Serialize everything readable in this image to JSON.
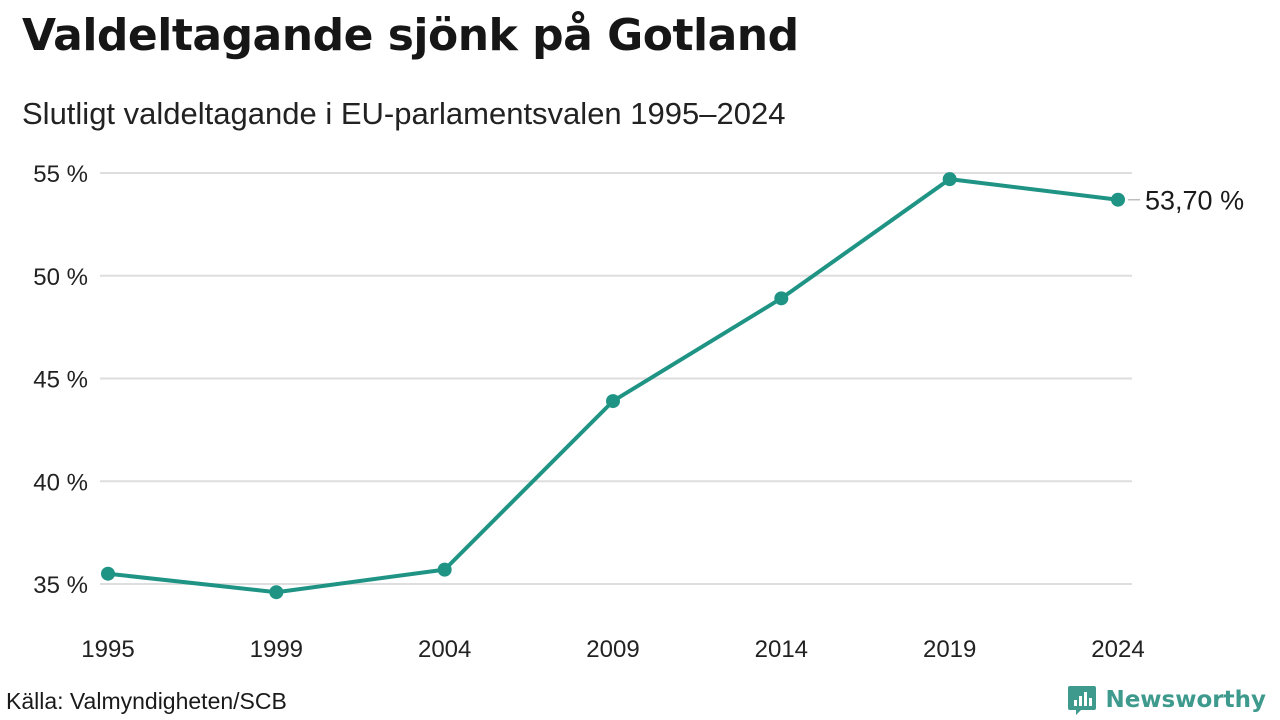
{
  "title": "Valdeltagande sjönk på Gotland",
  "subtitle": "Slutligt valdeltagande i EU-parlamentsvalen 1995–2024",
  "source": "Källa: Valmyndigheten/SCB",
  "brand": {
    "name": "Newsworthy",
    "icon": "newsworthy-logo-icon",
    "color": "#3f9a8e"
  },
  "colors": {
    "line": "#1f9485",
    "grid": "#dedede"
  },
  "chart_data": {
    "type": "line",
    "title": "Valdeltagande sjönk på Gotland",
    "subtitle": "Slutligt valdeltagande i EU-parlamentsvalen 1995–2024",
    "xlabel": "",
    "ylabel": "",
    "x": [
      "1995",
      "1999",
      "2004",
      "2009",
      "2014",
      "2019",
      "2024"
    ],
    "series": [
      {
        "values": [
          35.5,
          34.6,
          35.7,
          43.9,
          48.9,
          54.7,
          53.7
        ]
      }
    ],
    "y_ticks": [
      35,
      40,
      45,
      50,
      55
    ],
    "y_tick_labels": [
      "35 %",
      "40 %",
      "45 %",
      "50 %",
      "55 %"
    ],
    "ylim": [
      35,
      55
    ],
    "grid": true,
    "legend": "none",
    "annotation": {
      "x": "2024",
      "label": "53,70 %"
    }
  }
}
